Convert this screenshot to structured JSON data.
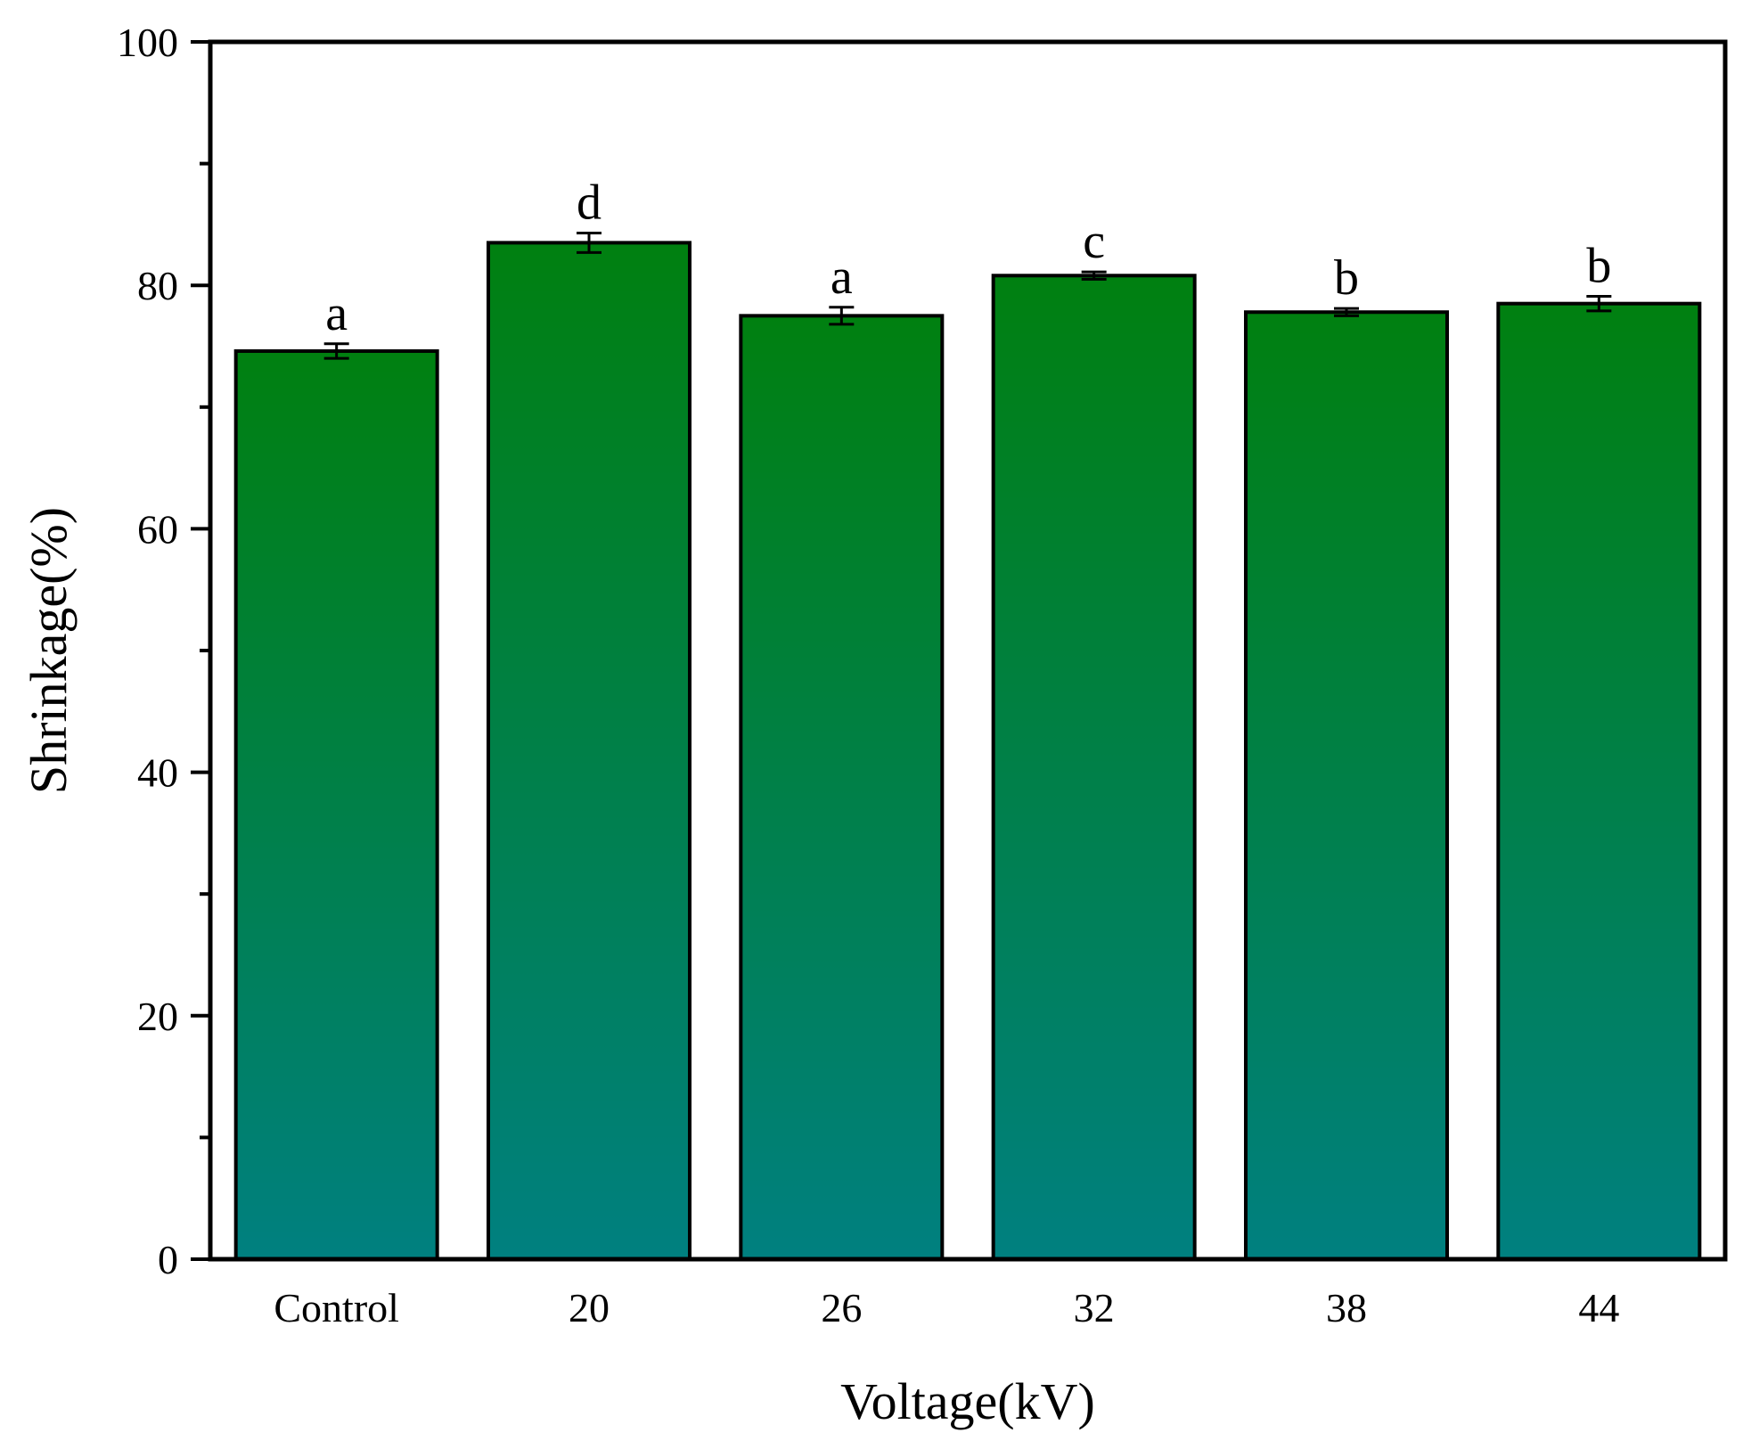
{
  "chart_data": {
    "type": "bar",
    "categories": [
      "Control",
      "20",
      "26",
      "32",
      "38",
      "44"
    ],
    "values": [
      74.6,
      83.5,
      77.5,
      80.8,
      77.8,
      78.5
    ],
    "errors": [
      0.6,
      0.8,
      0.7,
      0.3,
      0.3,
      0.6
    ],
    "significance_labels": [
      "a",
      "d",
      "a",
      "c",
      "b",
      "b"
    ],
    "xlabel": "Voltage(kV)",
    "ylabel": "Shrinkage(%)",
    "ylim": [
      0,
      100
    ],
    "yticks": [
      0,
      20,
      40,
      60,
      80,
      100
    ],
    "grid": false,
    "legend": "none",
    "colors": {
      "bar_top": "#008010",
      "bar_bottom": "#008080",
      "stroke": "#000000"
    }
  }
}
